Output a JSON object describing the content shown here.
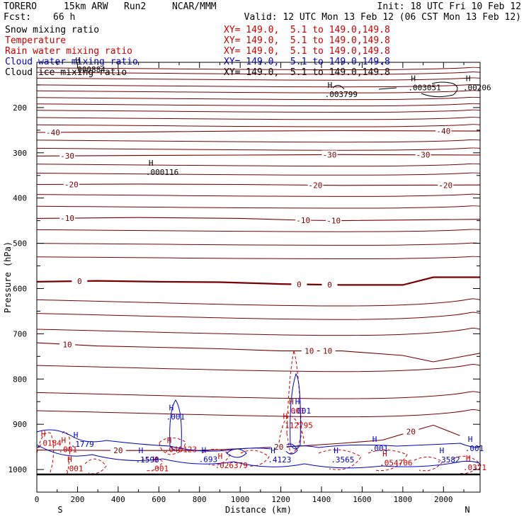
{
  "header": {
    "model": "TORERO",
    "resolution": "15km ARW",
    "run": "Run2",
    "org": "NCAR/MMM",
    "fcst_label": "Fcst:",
    "fcst_value": "66 h",
    "init": "Init: 18 UTC Fri 10 Feb 12",
    "valid": "Valid: 12 UTC Mon 13 Feb 12 (06 CST Mon 13 Feb 12)"
  },
  "fields": [
    {
      "name": "Snow mixing ratio",
      "xy": "XY= 149.0,  5.1 to 149.0,149.8",
      "color": "#000000"
    },
    {
      "name": "Temperature",
      "xy": "XY= 149.0,  5.1 to 149.0,149.8",
      "color": "#cc0000"
    },
    {
      "name": "Rain water mixing ratio",
      "xy": "XY= 149.0,  5.1 to 149.0,149.8",
      "color": "#cc0000"
    },
    {
      "name": "Cloud water mixing ratio",
      "xy": "XY= 149.0,  5.1 to 149.0,149.8",
      "color": "#0000cc"
    },
    {
      "name": "Cloud ice mixing ratio",
      "xy": "XY= 149.0,  5.1 to 149.0,149.8",
      "color": "#000000"
    }
  ],
  "chart_data": {
    "type": "line",
    "title": "",
    "xlabel": "Distance (km)",
    "ylabel": "Pressure (hPa)",
    "xlim": [
      0,
      2180
    ],
    "ylim": [
      1050,
      100
    ],
    "x_ticks": [
      0,
      200,
      400,
      600,
      800,
      1000,
      1200,
      1400,
      1600,
      1800,
      2000
    ],
    "y_ticks": [
      200,
      300,
      400,
      500,
      600,
      700,
      800,
      900,
      1000
    ],
    "x_end_labels": {
      "left": "S",
      "right": "N"
    },
    "temperature_isotherms": [
      {
        "value": -40,
        "points": [
          [
            0,
            255
          ],
          [
            500,
            254
          ],
          [
            1000,
            252
          ],
          [
            1500,
            251
          ],
          [
            2180,
            252
          ]
        ],
        "labels": [
          [
            80,
            "-40"
          ],
          [
            2000,
            "-40"
          ]
        ]
      },
      {
        "value": -30,
        "points": [
          [
            0,
            307
          ],
          [
            500,
            306
          ],
          [
            1000,
            305
          ],
          [
            1500,
            304
          ],
          [
            2180,
            305
          ]
        ],
        "labels": [
          [
            150,
            "-30"
          ],
          [
            1440,
            "-30"
          ],
          [
            1900,
            "-30"
          ]
        ]
      },
      {
        "value": -20,
        "points": [
          [
            0,
            370
          ],
          [
            500,
            369
          ],
          [
            1000,
            370
          ],
          [
            1500,
            372
          ],
          [
            2180,
            371
          ]
        ],
        "labels": [
          [
            170,
            "-20"
          ],
          [
            1370,
            "-20"
          ],
          [
            2010,
            "-20"
          ]
        ]
      },
      {
        "value": -10,
        "points": [
          [
            0,
            445
          ],
          [
            500,
            443
          ],
          [
            1000,
            445
          ],
          [
            1300,
            449
          ],
          [
            1500,
            450
          ],
          [
            2180,
            447
          ]
        ],
        "labels": [
          [
            150,
            "-10"
          ],
          [
            1310,
            "-10"
          ],
          [
            1460,
            "-10"
          ]
        ]
      },
      {
        "value": 0,
        "points": [
          [
            0,
            585
          ],
          [
            300,
            583
          ],
          [
            600,
            585
          ],
          [
            900,
            586
          ],
          [
            1200,
            590
          ],
          [
            1500,
            592
          ],
          [
            1800,
            592
          ],
          [
            1950,
            575
          ],
          [
            2180,
            575
          ]
        ],
        "labels": [
          [
            210,
            "0"
          ],
          [
            1290,
            "0"
          ],
          [
            1440,
            "0"
          ]
        ]
      },
      {
        "value": 10,
        "points": [
          [
            0,
            720
          ],
          [
            300,
            727
          ],
          [
            600,
            730
          ],
          [
            900,
            733
          ],
          [
            1200,
            738
          ],
          [
            1500,
            738
          ],
          [
            1800,
            748
          ],
          [
            1950,
            762
          ],
          [
            2180,
            743
          ]
        ],
        "labels": [
          [
            150,
            "10"
          ],
          [
            1340,
            "10"
          ],
          [
            1430,
            "10"
          ]
        ]
      },
      {
        "value": 20,
        "points": [
          [
            0,
            957
          ],
          [
            400,
            958
          ],
          [
            800,
            958
          ],
          [
            1050,
            953
          ],
          [
            1300,
            948
          ],
          [
            1500,
            942
          ],
          [
            1700,
            935
          ],
          [
            1850,
            915
          ],
          [
            1950,
            902
          ],
          [
            2080,
            925
          ]
        ],
        "labels": [
          [
            400,
            "20"
          ],
          [
            1190,
            "20"
          ],
          [
            1840,
            "20"
          ]
        ]
      }
    ],
    "highs": [
      {
        "x": 190,
        "p": 120,
        "label": ".000884",
        "color": "#000000"
      },
      {
        "x": 550,
        "p": 347,
        "label": ".000116",
        "color": "#000000"
      },
      {
        "x": 1430,
        "p": 175,
        "label": ".003799",
        "color": "#000000"
      },
      {
        "x": 1840,
        "p": 160,
        "label": ".003051",
        "color": "#000000"
      },
      {
        "x": 2110,
        "p": 160,
        "label": ".00206",
        "color": "#000000"
      },
      {
        "x": 1210,
        "p": 907,
        "label": ".112795",
        "color": "#cc0000"
      },
      {
        "x": 1240,
        "p": 875,
        "label": ".001",
        "color": "#cc0000"
      },
      {
        "x": 640,
        "p": 960,
        "label": ".040123",
        "color": "#cc0000"
      },
      {
        "x": 890,
        "p": 995,
        "label": ".026379",
        "color": "#cc0000"
      },
      {
        "x": 1700,
        "p": 990,
        "label": ".054706",
        "color": "#cc0000"
      },
      {
        "x": 2110,
        "p": 1000,
        "label": ".0371",
        "color": "#cc0000"
      },
      {
        "x": 20,
        "p": 946,
        "label": ".0184",
        "color": "#cc0000"
      },
      {
        "x": 120,
        "p": 960,
        "label": ".001",
        "color": "#cc0000"
      },
      {
        "x": 150,
        "p": 1002,
        "label": ".001",
        "color": "#cc0000"
      },
      {
        "x": 570,
        "p": 1002,
        "label": ".001",
        "color": "#cc0000"
      },
      {
        "x": 180,
        "p": 948,
        "label": ".1779",
        "color": "#0000cc"
      },
      {
        "x": 500,
        "p": 983,
        "label": ".1598",
        "color": "#0000cc"
      },
      {
        "x": 810,
        "p": 982,
        "label": ".693",
        "color": "#0000cc"
      },
      {
        "x": 1150,
        "p": 983,
        "label": ".4123",
        "color": "#0000cc"
      },
      {
        "x": 1460,
        "p": 983,
        "label": ".3565",
        "color": "#0000cc"
      },
      {
        "x": 1980,
        "p": 983,
        "label": ".3582",
        "color": "#0000cc"
      },
      {
        "x": 650,
        "p": 888,
        "label": ".001",
        "color": "#0000cc"
      },
      {
        "x": 1270,
        "p": 875,
        "label": ".001",
        "color": "#0000cc"
      },
      {
        "x": 1650,
        "p": 958,
        "label": ".001",
        "color": "#0000cc"
      },
      {
        "x": 2120,
        "p": 958,
        "label": ".001",
        "color": "#0000cc"
      }
    ],
    "colors": {
      "temperature": "#7a0000",
      "rain": "#cc0000",
      "cloud_water": "#0000cc",
      "snow": "#000000"
    }
  }
}
